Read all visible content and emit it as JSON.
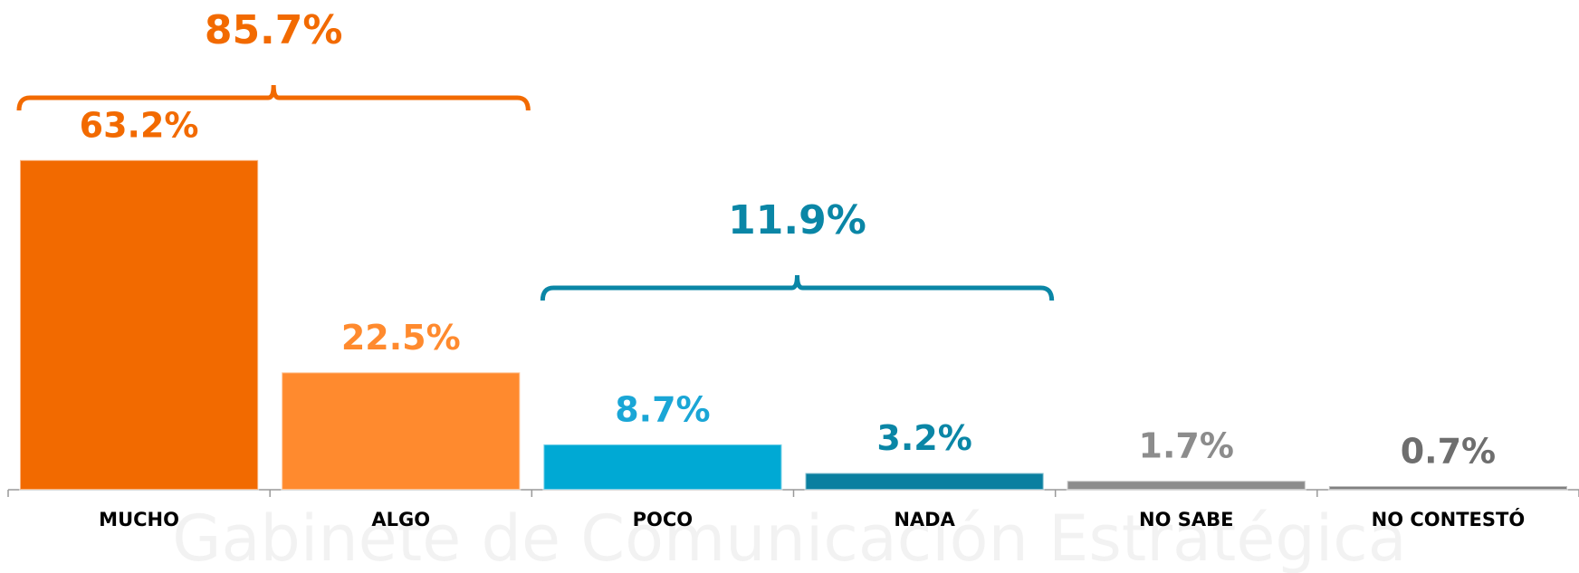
{
  "chart_data": {
    "type": "bar",
    "categories": [
      "MUCHO",
      "ALGO",
      "POCO",
      "NADA",
      "NO SABE",
      "NO CONTESTÓ"
    ],
    "values": [
      63.2,
      22.5,
      8.7,
      3.2,
      1.7,
      0.7
    ],
    "value_labels": [
      "63.2%",
      "22.5%",
      "8.7%",
      "3.2%",
      "1.7%",
      "0.7%"
    ],
    "colors": [
      "#f26a00",
      "#ff8a2e",
      "#00a9d4",
      "#0a7fa0",
      "#8c8c8c",
      "#808080"
    ],
    "label_colors": [
      "#f26a00",
      "#ff8a2e",
      "#1aa6d6",
      "#0a86a6",
      "#8c8c8c",
      "#6e6e6e"
    ],
    "ylim": [
      0,
      80
    ],
    "grid": false,
    "brackets": [
      {
        "value": 85.7,
        "label": "85.7%",
        "color": "#f26a00",
        "categories": [
          "MUCHO",
          "ALGO"
        ]
      },
      {
        "value": 11.9,
        "label": "11.9%",
        "color": "#0a86a6",
        "categories": [
          "POCO",
          "NADA"
        ]
      }
    ],
    "watermark": "Gabinete de Comunicación Estratégica"
  }
}
